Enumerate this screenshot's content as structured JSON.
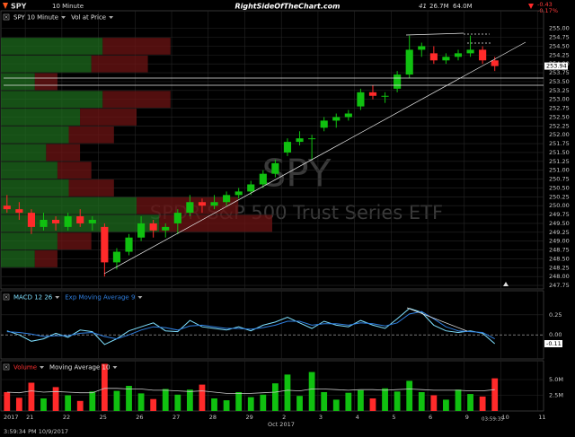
{
  "header": {
    "symbol": "SPY",
    "interval": "10 Minute",
    "site": "RightSideOfTheChart.com",
    "stat_count": "41",
    "stat_volume": "26.7M",
    "stat_avg_volume": "64.0M",
    "change": "-0.43",
    "change_pct": "-0.17%"
  },
  "watermark": {
    "symbol": "SPY",
    "name": "SPDR S&P 500 Trust Series ETF"
  },
  "footer": {
    "year": "2017",
    "month": "Oct 2017",
    "timestamp": "3:59:34 PM 10/9/2017",
    "clock": "03:59:35"
  },
  "chart_data": [
    {
      "type": "candlestick",
      "name": "SPY 10 Minute",
      "up_color": "#10c010",
      "down_color": "#ff2a2a",
      "open": [
        250.0,
        249.9,
        249.8,
        249.4,
        249.6,
        249.4,
        249.7,
        249.5,
        249.4,
        248.4,
        248.7,
        249.1,
        249.5,
        249.3,
        249.5,
        249.8,
        250.1,
        250.0,
        250.1,
        250.3,
        250.4,
        250.6,
        250.9,
        251.5,
        251.8,
        251.9,
        252.2,
        252.4,
        252.5,
        252.8,
        253.2,
        253.1,
        253.3,
        253.7,
        254.4,
        254.3,
        254.1,
        254.2,
        254.3,
        254.4,
        254.1
      ],
      "high": [
        250.3,
        250.1,
        249.9,
        249.8,
        249.7,
        249.8,
        249.9,
        249.7,
        249.5,
        248.8,
        249.2,
        249.7,
        249.6,
        249.5,
        249.9,
        250.3,
        250.2,
        250.3,
        250.4,
        250.5,
        250.7,
        251.0,
        251.3,
        251.9,
        252.1,
        252.0,
        252.5,
        252.6,
        252.7,
        253.3,
        253.4,
        253.2,
        253.8,
        254.8,
        254.6,
        254.5,
        254.3,
        254.4,
        254.8,
        254.5,
        254.2
      ],
      "low": [
        249.8,
        249.6,
        249.2,
        249.3,
        249.3,
        249.3,
        249.4,
        249.3,
        248.0,
        248.2,
        248.6,
        249.0,
        249.1,
        249.1,
        249.2,
        249.7,
        249.8,
        249.9,
        250.0,
        250.2,
        250.3,
        250.5,
        250.8,
        251.4,
        251.7,
        251.3,
        252.1,
        252.2,
        252.4,
        252.7,
        253.0,
        252.9,
        253.2,
        253.6,
        254.2,
        254.0,
        254.0,
        254.1,
        254.2,
        254.0,
        253.8
      ],
      "close": [
        249.9,
        249.8,
        249.4,
        249.6,
        249.5,
        249.7,
        249.5,
        249.6,
        248.4,
        248.7,
        249.1,
        249.5,
        249.3,
        249.4,
        249.8,
        250.1,
        250.0,
        250.1,
        250.3,
        250.4,
        250.6,
        250.9,
        251.2,
        251.8,
        251.9,
        251.9,
        252.4,
        252.5,
        252.6,
        253.2,
        253.1,
        253.1,
        253.7,
        254.4,
        254.5,
        254.1,
        254.2,
        254.3,
        254.4,
        254.1,
        253.94
      ],
      "last_value": 253.94,
      "xlim": [
        -0.5,
        44
      ],
      "ylim": [
        247.65,
        255.5
      ],
      "grid": true,
      "yticks": [
        247.75,
        {
          "value": 248,
          "label": "248.00"
        },
        248.25,
        {
          "value": 248.5,
          "label": "248.50"
        },
        248.75,
        {
          "value": 249,
          "label": "249.00"
        },
        249.25,
        {
          "value": 249.5,
          "label": "249.50"
        },
        249.75,
        {
          "value": 250,
          "label": "250.00"
        },
        250.25,
        {
          "value": 250.5,
          "label": "250.50"
        },
        250.75,
        {
          "value": 251,
          "label": "251.00"
        },
        251.25,
        {
          "value": 251.5,
          "label": "251.50"
        },
        251.75,
        {
          "value": 252,
          "label": "252.00"
        },
        252.25,
        {
          "value": 252.5,
          "label": "252.50"
        },
        252.75,
        {
          "value": 253,
          "label": "253.00"
        },
        253.25,
        {
          "value": 253.5,
          "label": "253.50"
        },
        253.75,
        {
          "value": 254,
          "label": "254.00"
        },
        254.25,
        {
          "value": 254.5,
          "label": "254.50"
        },
        254.75,
        {
          "value": 255,
          "label": "255.00"
        }
      ],
      "vap": {
        "name": "Vol at Price",
        "up_color": "#1d6b1d",
        "down_color": "#6e1414",
        "bins": [
          248.25,
          248.75,
          249.25,
          249.75,
          250.25,
          250.75,
          251.25,
          251.75,
          252.25,
          252.75,
          253.25,
          253.75,
          254.25,
          254.75
        ],
        "up": [
          3,
          5,
          14,
          12,
          6,
          5,
          4,
          6,
          7,
          9,
          3,
          8,
          9
        ],
        "down": [
          2,
          3,
          10,
          9,
          4,
          3,
          3,
          4,
          5,
          6,
          2,
          5,
          6
        ],
        "xmax": 48
      }
    },
    {
      "type": "line",
      "xlim": [
        -0.5,
        44
      ],
      "ylim": [
        -0.3,
        0.55
      ],
      "grid": true,
      "yticks": [
        {
          "value": 0,
          "label": "0.00"
        },
        0.25
      ],
      "last_value": -0.11,
      "series": [
        {
          "name": "MACD 12 26",
          "color": "#7fe0ff",
          "values": [
            0.05,
            0.0,
            -0.08,
            -0.05,
            0.02,
            -0.03,
            0.06,
            0.04,
            -0.12,
            -0.05,
            0.05,
            0.1,
            0.15,
            0.05,
            0.04,
            0.18,
            0.1,
            0.08,
            0.06,
            0.1,
            0.05,
            0.12,
            0.16,
            0.22,
            0.15,
            0.08,
            0.17,
            0.12,
            0.1,
            0.18,
            0.12,
            0.08,
            0.2,
            0.33,
            0.28,
            0.12,
            0.05,
            0.03,
            0.05,
            0.02,
            -0.11
          ]
        },
        {
          "name": "Exp Moving Average 9",
          "color": "#2f7fe0",
          "values": [
            0.04,
            0.03,
            0.01,
            -0.02,
            -0.01,
            -0.01,
            0.02,
            0.03,
            -0.02,
            -0.05,
            0.0,
            0.06,
            0.1,
            0.09,
            0.06,
            0.11,
            0.12,
            0.1,
            0.08,
            0.08,
            0.07,
            0.09,
            0.12,
            0.17,
            0.17,
            0.12,
            0.14,
            0.14,
            0.12,
            0.15,
            0.14,
            0.11,
            0.15,
            0.26,
            0.29,
            0.2,
            0.1,
            0.05,
            0.04,
            0.03,
            -0.05
          ]
        }
      ]
    },
    {
      "type": "bar",
      "xlim": [
        -0.5,
        44
      ],
      "ylim": [
        0,
        8
      ],
      "grid": true,
      "yticks": [
        {
          "value": 2.5,
          "label": "2.5M"
        },
        {
          "value": 5,
          "label": "5.0M"
        }
      ],
      "xticks": [
        {
          "value": 1.5,
          "label": "21"
        },
        {
          "value": 4.5,
          "label": "22"
        },
        {
          "value": 7.5,
          "label": "25"
        },
        {
          "value": 10.5,
          "label": "26"
        },
        {
          "value": 13.5,
          "label": "27"
        },
        {
          "value": 16.5,
          "label": "28"
        },
        {
          "value": 19.5,
          "label": "29"
        },
        {
          "value": 22.5,
          "label": "2"
        },
        {
          "value": 25.5,
          "label": "3"
        },
        {
          "value": 28.5,
          "label": "4"
        },
        {
          "value": 31.5,
          "label": "5"
        },
        {
          "value": 34.5,
          "label": "6"
        },
        {
          "value": 37.5,
          "label": "9"
        },
        {
          "value": 40.5,
          "label": "10"
        },
        {
          "value": 43.5,
          "label": "11"
        }
      ],
      "series": [
        {
          "name": "Volume",
          "style": "bar",
          "color": "#ff3030",
          "values": [
            3.0,
            2.1,
            4.5,
            2.0,
            3.8,
            2.5,
            1.6,
            3.1,
            7.5,
            3.2,
            4.0,
            2.8,
            1.9,
            3.5,
            2.6,
            3.4,
            4.2,
            2.0,
            1.7,
            3.0,
            2.2,
            2.6,
            4.4,
            5.8,
            2.4,
            6.2,
            3.0,
            1.8,
            2.9,
            3.3,
            2.0,
            3.6,
            3.1,
            4.8,
            3.0,
            2.5,
            1.8,
            3.4,
            2.7,
            2.3,
            5.2
          ]
        },
        {
          "name": "Moving Average 10",
          "style": "line",
          "color": "#c8c8c8",
          "values": [
            3.0,
            2.9,
            3.2,
            3.0,
            3.1,
            3.0,
            2.9,
            2.9,
            3.6,
            3.6,
            3.5,
            3.5,
            3.3,
            3.3,
            3.2,
            3.1,
            3.2,
            3.0,
            2.8,
            2.8,
            2.8,
            2.9,
            3.0,
            3.3,
            3.2,
            3.5,
            3.5,
            3.4,
            3.3,
            3.4,
            3.4,
            3.3,
            3.4,
            3.5,
            3.4,
            3.3,
            3.3,
            3.3,
            3.2,
            3.2,
            3.4
          ]
        }
      ]
    }
  ]
}
